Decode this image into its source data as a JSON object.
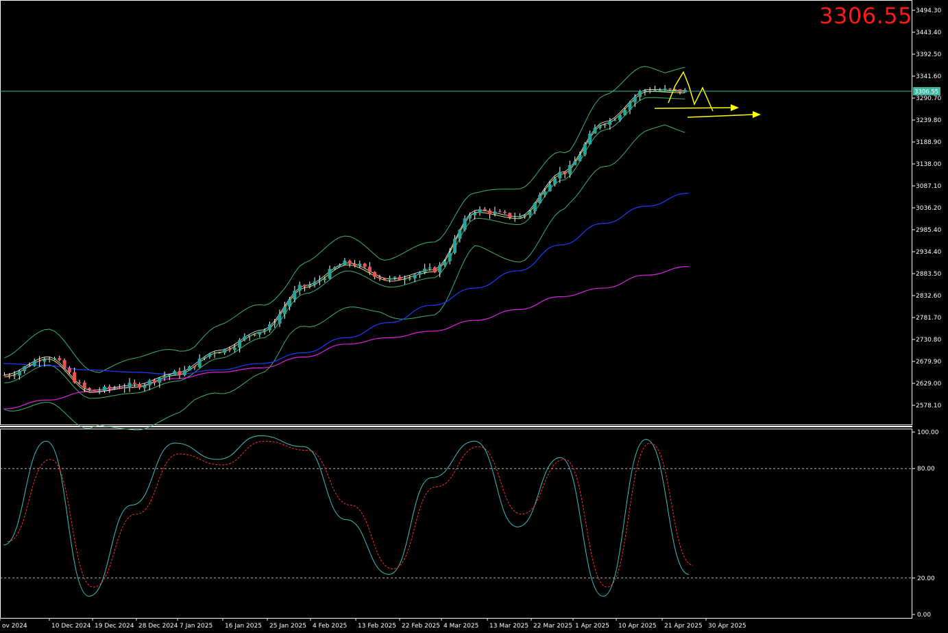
{
  "header": {
    "current_price_label": "3306.55"
  },
  "price_axis": {
    "ticks": [
      "3494.30",
      "3443.40",
      "3392.50",
      "3341.60",
      "3290.70",
      "3239.80",
      "3188.90",
      "3138.00",
      "3087.10",
      "3036.20",
      "2985.40",
      "2934.40",
      "2883.50",
      "2832.60",
      "2781.70",
      "2730.80",
      "2679.90",
      "2629.00",
      "2578.10"
    ],
    "current_marker": "3306.55"
  },
  "osc_axis": {
    "ticks": [
      "100.00",
      "80.00",
      "20.00",
      "0.00"
    ]
  },
  "time_axis": {
    "ticks": [
      "ov 2024",
      "10 Dec 2024",
      "19 Dec 2024",
      "28 Dec 2024",
      "7 Jan 2025",
      "16 Jan 2025",
      "25 Jan 2025",
      "4 Feb 2025",
      "13 Feb 2025",
      "22 Feb 2025",
      "4 Mar 2025",
      "13 Mar 2025",
      "22 Mar 2025",
      "1 Apr 2025",
      "10 Apr 2025",
      "21 Apr 2025",
      "30 Apr 2025"
    ]
  },
  "colors": {
    "background": "#000000",
    "bull_candle": "#26a69a",
    "bear_candle": "#ef5350",
    "bollinger": "#3cb371",
    "ma_fast": "#ffffff",
    "ma_mid": "#e6e66a",
    "ma_slow_blue": "#1e3cff",
    "ma_slowest_magenta": "#e020e0",
    "stoch_main": "#40c0c0",
    "stoch_signal": "#ff3030",
    "current_line": "#3cb8a0",
    "projection_arrows": "#ffff00",
    "price_label": "#ff1a1a"
  },
  "chart_data": {
    "type": "line",
    "symbol_price": 3306.55,
    "ylim": [
      2540,
      3510
    ],
    "x": [
      "ov 2024",
      "10 Dec 2024",
      "19 Dec 2024",
      "28 Dec 2024",
      "7 Jan 2025",
      "16 Jan 2025",
      "25 Jan 2025",
      "4 Feb 2025",
      "13 Feb 2025",
      "22 Feb 2025",
      "4 Mar 2025",
      "13 Mar 2025",
      "22 Mar 2025",
      "1 Apr 2025",
      "10 Apr 2025",
      "21 Apr 2025",
      "30 Apr 2025"
    ],
    "series": [
      {
        "values": [
          2648,
          2690,
          2612,
          2624,
          2652,
          2705,
          2752,
          2855,
          2908,
          2870,
          2892,
          3030,
          3015,
          3118,
          3235,
          3310,
          3306.55
        ]
      }
    ],
    "indicators": {
      "ma_blue": [
        2675,
        2670,
        2660,
        2655,
        2650,
        2660,
        2675,
        2700,
        2735,
        2770,
        2810,
        2850,
        2890,
        2950,
        3000,
        3040,
        3070
      ],
      "ma_magenta": [
        2570,
        2590,
        2610,
        2620,
        2640,
        2655,
        2665,
        2690,
        2720,
        2735,
        2750,
        2775,
        2800,
        2830,
        2850,
        2880,
        2900
      ]
    },
    "stochastic": {
      "ylim": [
        0,
        100
      ],
      "levels": [
        80,
        20
      ],
      "main": [
        38,
        95,
        10,
        60,
        94,
        85,
        98,
        92,
        52,
        22,
        75,
        95,
        48,
        86,
        10,
        96,
        22
      ],
      "signal": [
        40,
        85,
        15,
        55,
        88,
        82,
        95,
        90,
        60,
        25,
        70,
        92,
        55,
        85,
        15,
        94,
        27
      ]
    }
  }
}
